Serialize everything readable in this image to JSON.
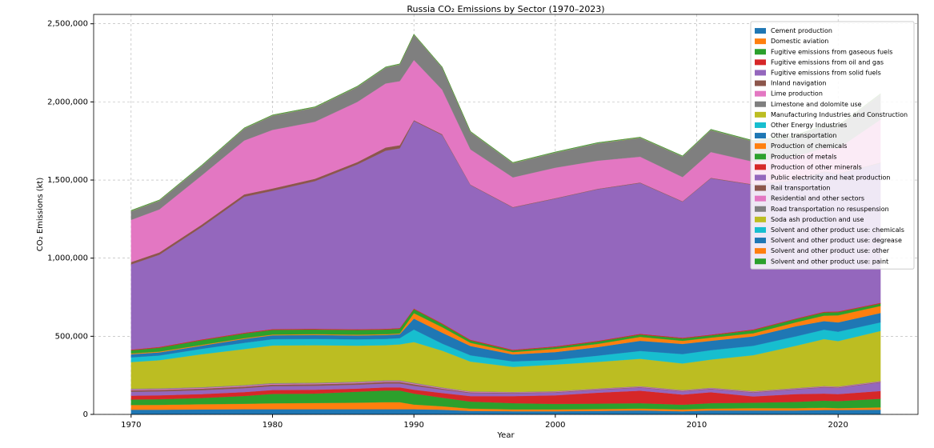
{
  "chart_data": {
    "type": "stackedarea",
    "title": "Russia CO₂ Emissions by Sector (1970–2023)",
    "x_label": "Year",
    "y_label": "CO₂ Emissions (kt)",
    "x": [
      1970,
      1972,
      1975,
      1978,
      1980,
      1983,
      1986,
      1988,
      1989,
      1990,
      1992,
      1994,
      1997,
      2000,
      2003,
      2006,
      2009,
      2011,
      2014,
      2017,
      2019,
      2020,
      2023
    ],
    "xlim": [
      1967.35,
      2025.65
    ],
    "xticks": [
      1970,
      1980,
      1990,
      2000,
      2010,
      2020
    ],
    "ylim": [
      0,
      2560000
    ],
    "yticks": [
      0,
      {
        "value": 500000,
        "label": "500,000"
      },
      {
        "value": 1000000,
        "label": "1,000,000"
      },
      {
        "value": 1500000,
        "label": "1,500,000"
      },
      {
        "value": 2000000,
        "label": "2,000,000"
      },
      {
        "value": 2500000,
        "label": "2,500,000"
      }
    ],
    "grid": true,
    "legend": "upper right",
    "series": [
      {
        "name": "Cement production",
        "color": "#1f77b4",
        "values": [
          30000,
          30000,
          32000,
          33000,
          33000,
          33000,
          33000,
          33000,
          33000,
          33000,
          30000,
          22000,
          20000,
          20000,
          22000,
          25000,
          20000,
          25000,
          25000,
          25000,
          28000,
          28000,
          30000
        ]
      },
      {
        "name": "Domestic aviation",
        "color": "#ff7f0e",
        "values": [
          30000,
          31000,
          33000,
          35000,
          38000,
          40000,
          42000,
          45000,
          45000,
          30000,
          22000,
          15000,
          12000,
          12000,
          12000,
          12000,
          12000,
          12000,
          15000,
          15000,
          15000,
          12000,
          15000
        ]
      },
      {
        "name": "Fugitive emissions from gaseous fuels",
        "color": "#2ca02c",
        "values": [
          35000,
          36000,
          40000,
          50000,
          60000,
          60000,
          70000,
          75000,
          75000,
          70000,
          55000,
          45000,
          40000,
          35000,
          35000,
          35000,
          30000,
          35000,
          35000,
          40000,
          45000,
          45000,
          55000
        ]
      },
      {
        "name": "Fugitive emissions from oil and gas",
        "color": "#d62728",
        "values": [
          25000,
          25000,
          25000,
          25000,
          25000,
          25000,
          20000,
          20000,
          20000,
          25000,
          30000,
          35000,
          45000,
          55000,
          70000,
          80000,
          65000,
          70000,
          40000,
          50000,
          45000,
          45000,
          50000
        ]
      },
      {
        "name": "Fugitive emissions from solid fuels",
        "color": "#9467bd",
        "values": [
          25000,
          25000,
          25000,
          25000,
          25000,
          25000,
          25000,
          25000,
          25000,
          25000,
          22000,
          20000,
          18000,
          18000,
          18000,
          20000,
          20000,
          20000,
          25000,
          30000,
          40000,
          40000,
          55000
        ]
      },
      {
        "name": "Inland navigation",
        "color": "#8c564b",
        "values": [
          10000,
          10000,
          10000,
          10000,
          10000,
          10000,
          10000,
          10000,
          10000,
          10000,
          6000,
          4000,
          3000,
          3000,
          3000,
          3000,
          3000,
          3000,
          3000,
          3000,
          3000,
          3000,
          3000
        ]
      },
      {
        "name": "Lime production",
        "color": "#e377c2",
        "values": [
          5000,
          5000,
          5000,
          5000,
          5000,
          5000,
          5000,
          5000,
          5000,
          5000,
          4000,
          4000,
          3000,
          3000,
          3000,
          3000,
          3000,
          3000,
          3000,
          3000,
          3000,
          3000,
          3000
        ]
      },
      {
        "name": "Limestone and dolomite use",
        "color": "#7f7f7f",
        "values": [
          5000,
          5000,
          5000,
          5000,
          5000,
          5000,
          5000,
          5000,
          5000,
          5000,
          4000,
          3000,
          3000,
          3000,
          3000,
          3000,
          3000,
          3000,
          3000,
          3000,
          3000,
          3000,
          3000
        ]
      },
      {
        "name": "Manufacturing Industries and Construction",
        "color": "#bcbd22",
        "values": [
          170000,
          180000,
          210000,
          230000,
          240000,
          240000,
          230000,
          225000,
          230000,
          260000,
          235000,
          190000,
          160000,
          170000,
          170000,
          175000,
          170000,
          180000,
          230000,
          270000,
          300000,
          290000,
          320000
        ]
      },
      {
        "name": "Other Energy Industries",
        "color": "#17becf",
        "values": [
          30000,
          30000,
          35000,
          40000,
          40000,
          40000,
          40000,
          40000,
          40000,
          80000,
          45000,
          40000,
          35000,
          30000,
          40000,
          50000,
          60000,
          60000,
          60000,
          60000,
          60000,
          60000,
          55000
        ]
      },
      {
        "name": "Other transportation",
        "color": "#1f77b4",
        "values": [
          20000,
          20000,
          20000,
          25000,
          25000,
          25000,
          25000,
          25000,
          25000,
          70000,
          70000,
          60000,
          45000,
          50000,
          55000,
          65000,
          65000,
          60000,
          60000,
          65000,
          55000,
          60000,
          60000
        ]
      },
      {
        "name": "Production of chemicals",
        "color": "#ff7f0e",
        "values": [
          5000,
          5000,
          5000,
          5000,
          5000,
          5000,
          5000,
          5000,
          5000,
          35000,
          35000,
          20000,
          15000,
          20000,
          20000,
          25000,
          20000,
          20000,
          20000,
          25000,
          35000,
          45000,
          45000
        ]
      },
      {
        "name": "Production of metals",
        "color": "#2ca02c",
        "values": [
          20000,
          25000,
          30000,
          30000,
          30000,
          30000,
          30000,
          30000,
          30000,
          25000,
          20000,
          15000,
          10000,
          12000,
          15000,
          15000,
          15000,
          15000,
          20000,
          20000,
          20000,
          20000,
          15000
        ]
      },
      {
        "name": "Production of other minerals",
        "color": "#d62728",
        "values": [
          5000,
          5000,
          5000,
          5000,
          5000,
          5000,
          5000,
          5000,
          5000,
          5000,
          5000,
          5000,
          5000,
          5000,
          5000,
          5000,
          5000,
          5000,
          5000,
          5000,
          5000,
          5000,
          5000
        ]
      },
      {
        "name": "Public electricity and heat production",
        "color": "#9467bd",
        "values": [
          545000,
          590000,
          720000,
          870000,
          885000,
          945000,
          1055000,
          1140000,
          1150000,
          1200000,
          1205000,
          990000,
          910000,
          945000,
          970000,
          965000,
          870000,
          1000000,
          925000,
          885000,
          895000,
          880000,
          895000
        ]
      },
      {
        "name": "Rail transportation",
        "color": "#8c564b",
        "values": [
          15000,
          15000,
          15000,
          15000,
          15000,
          15000,
          15000,
          20000,
          20000,
          5000,
          5000,
          3000,
          3000,
          3000,
          3000,
          3000,
          3000,
          3000,
          3000,
          3000,
          3000,
          3000,
          3000
        ]
      },
      {
        "name": "Residential and other sectors",
        "color": "#e377c2",
        "values": [
          270000,
          275000,
          315000,
          345000,
          375000,
          365000,
          385000,
          410000,
          410000,
          385000,
          285000,
          225000,
          190000,
          195000,
          180000,
          165000,
          155000,
          165000,
          145000,
          150000,
          150000,
          160000,
          275000
        ]
      },
      {
        "name": "Road transportation no resuspension",
        "color": "#7f7f7f",
        "values": [
          55000,
          55000,
          60000,
          75000,
          90000,
          90000,
          95000,
          100000,
          105000,
          160000,
          140000,
          110000,
          90000,
          95000,
          110000,
          120000,
          130000,
          140000,
          130000,
          130000,
          140000,
          140000,
          160000
        ]
      },
      {
        "name": "Soda ash production and use",
        "color": "#bcbd22",
        "values": [
          2000,
          2000,
          2000,
          2000,
          2000,
          2000,
          2000,
          2000,
          2000,
          2000,
          2000,
          2000,
          2000,
          2000,
          2000,
          2000,
          2000,
          2000,
          2000,
          2000,
          2000,
          2000,
          2000
        ]
      },
      {
        "name": "Solvent and other product use: chemicals",
        "color": "#17becf",
        "values": [
          1000,
          1000,
          1000,
          1000,
          1000,
          1000,
          1000,
          1000,
          1000,
          1000,
          1000,
          1000,
          1000,
          1000,
          1000,
          1000,
          1000,
          1000,
          1000,
          1000,
          1000,
          1000,
          1000
        ]
      },
      {
        "name": "Solvent and other product use: degrease",
        "color": "#1f77b4",
        "values": [
          1000,
          1000,
          1000,
          1000,
          1000,
          1000,
          1000,
          1000,
          1000,
          1000,
          1000,
          1000,
          1000,
          1000,
          1000,
          1000,
          1000,
          1000,
          1000,
          1000,
          1000,
          1000,
          1000
        ]
      },
      {
        "name": "Solvent and other product use: other",
        "color": "#ff7f0e",
        "values": [
          1000,
          1000,
          1000,
          1000,
          1000,
          1000,
          1000,
          1000,
          1000,
          1000,
          1000,
          1000,
          1000,
          1000,
          1000,
          1000,
          1000,
          1000,
          1000,
          1000,
          1000,
          1000,
          1000
        ]
      },
      {
        "name": "Solvent and other product use: paint",
        "color": "#2ca02c",
        "values": [
          1000,
          1000,
          1000,
          1000,
          1000,
          1000,
          1000,
          1000,
          1000,
          1000,
          1000,
          1000,
          1000,
          1000,
          1000,
          1000,
          1000,
          1000,
          1000,
          1000,
          1000,
          1000,
          1000
        ]
      }
    ]
  }
}
